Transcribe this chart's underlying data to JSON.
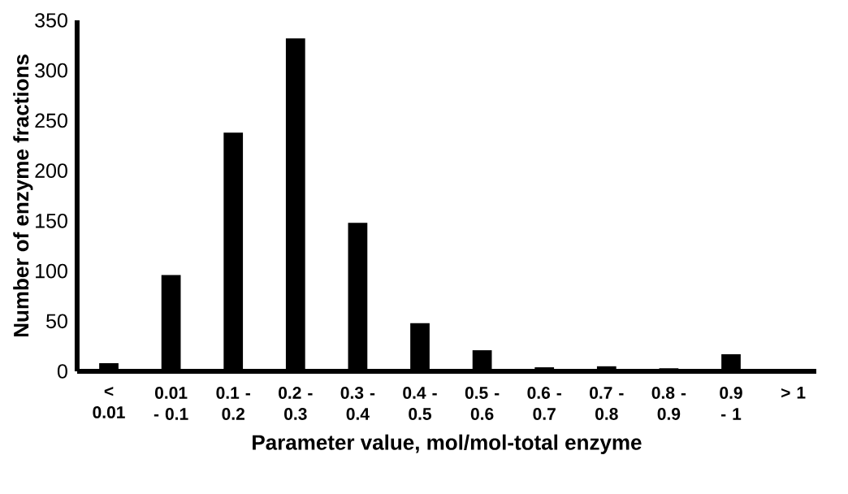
{
  "chart_data": {
    "type": "bar",
    "xlabel": "Parameter value, mol/mol-total enzyme",
    "ylabel": "Number of enzyme fractions",
    "categories": [
      "< 0.01",
      "0.01 - 0.1",
      "0.1 - 0.2",
      "0.2 - 0.3",
      "0.3 - 0.4",
      "0.4 - 0.5",
      "0.5 - 0.6",
      "0.6 - 0.7",
      "0.7 - 0.8",
      "0.8 - 0.9",
      "0.9 - 1",
      "> 1"
    ],
    "values": [
      8,
      96,
      238,
      332,
      148,
      48,
      21,
      4,
      5,
      3,
      17,
      0
    ],
    "color": "#000000",
    "ylim": [
      0,
      350
    ],
    "yticks": [
      0,
      50,
      100,
      150,
      200,
      250,
      300,
      350
    ]
  }
}
